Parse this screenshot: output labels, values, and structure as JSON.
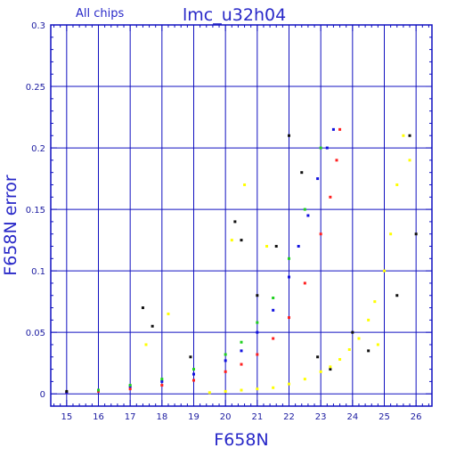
{
  "chart_data": {
    "type": "scatter",
    "title": "lmc_u32h04",
    "subtitle": "All chips",
    "xlabel": "F658N",
    "ylabel": "F658N error",
    "xlim": [
      14.5,
      26.5
    ],
    "ylim": [
      -0.01,
      0.3
    ],
    "x_ticks": [
      15,
      16,
      17,
      18,
      19,
      20,
      21,
      22,
      23,
      24,
      25,
      26
    ],
    "y_ticks": [
      0,
      0.05,
      0.1,
      0.15,
      0.2,
      0.25,
      0.3
    ],
    "grid": true,
    "colors": {
      "grid": "#1010c0",
      "text": "#2828c8",
      "red": "#ff2020",
      "blue": "#1010e0",
      "green": "#20d020",
      "black": "#101010",
      "purple": "#800080",
      "yellow": "#ffff00"
    },
    "series": [
      {
        "color": "red",
        "x": [
          15,
          16,
          17,
          18,
          19,
          20,
          20.5,
          21,
          21.5,
          22,
          22.5,
          23,
          23.3,
          23.5,
          23.6
        ],
        "y": [
          0.001,
          0.002,
          0.004,
          0.007,
          0.011,
          0.018,
          0.024,
          0.032,
          0.045,
          0.062,
          0.09,
          0.13,
          0.16,
          0.19,
          0.215
        ]
      },
      {
        "color": "blue",
        "x": [
          15,
          16,
          17,
          18,
          19,
          20,
          20.5,
          21,
          21.5,
          22,
          22.3,
          22.6,
          22.9,
          23.2,
          23.4
        ],
        "y": [
          0.001,
          0.003,
          0.006,
          0.01,
          0.016,
          0.027,
          0.035,
          0.05,
          0.068,
          0.095,
          0.12,
          0.145,
          0.175,
          0.2,
          0.215
        ]
      },
      {
        "color": "green",
        "x": [
          16,
          17,
          18,
          19,
          20,
          20.5,
          21,
          21.5,
          22,
          22.5,
          23
        ],
        "y": [
          0.003,
          0.007,
          0.012,
          0.02,
          0.032,
          0.042,
          0.058,
          0.078,
          0.11,
          0.15,
          0.2
        ]
      },
      {
        "color": "black",
        "x": [
          15,
          17.4,
          17.7,
          18.9,
          20.3,
          20.5,
          21,
          21.6,
          22,
          22.4,
          22.9,
          23.3,
          24,
          24.5,
          25.4,
          25.8,
          26
        ],
        "y": [
          0.002,
          0.07,
          0.055,
          0.03,
          0.14,
          0.125,
          0.08,
          0.12,
          0.21,
          0.18,
          0.03,
          0.02,
          0.05,
          0.035,
          0.08,
          0.21,
          0.13
        ]
      },
      {
        "color": "yellow",
        "x": [
          19.5,
          20,
          20.5,
          21,
          21.5,
          22,
          22.5,
          23,
          23.3,
          23.6,
          23.9,
          24.2,
          24.5,
          24.7,
          25,
          25.2,
          25.4,
          25.6,
          17.5,
          18.2,
          20.2,
          20.6,
          21.3,
          24.8,
          25.8
        ],
        "y": [
          0.001,
          0.002,
          0.003,
          0.004,
          0.005,
          0.008,
          0.012,
          0.018,
          0.022,
          0.028,
          0.036,
          0.045,
          0.06,
          0.075,
          0.1,
          0.13,
          0.17,
          0.21,
          0.04,
          0.065,
          0.125,
          0.17,
          0.12,
          0.04,
          0.19
        ]
      }
    ]
  }
}
